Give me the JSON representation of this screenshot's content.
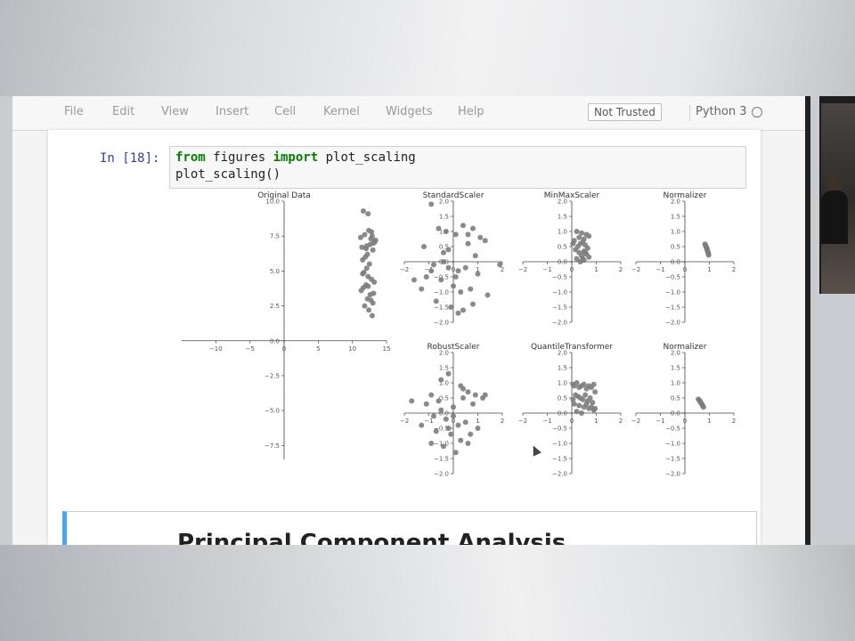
{
  "menu": {
    "items": [
      "File",
      "Edit",
      "View",
      "Insert",
      "Cell",
      "Kernel",
      "Widgets",
      "Help"
    ],
    "trust_status": "Not Trusted",
    "kernel_name": "Python 3"
  },
  "cell": {
    "prompt": "In [18]:",
    "code_line1_keyword1": "from",
    "code_line1_module": " figures ",
    "code_line1_keyword2": "import",
    "code_line1_name": " plot_scaling",
    "code_line2": "plot_scaling()"
  },
  "next_cell": {
    "heading": "Principal Component Analysis"
  },
  "chart_data": [
    {
      "type": "scatter",
      "title": "Original Data",
      "xlim": [
        -15,
        15
      ],
      "ylim": [
        -8.5,
        10
      ],
      "xticks": [
        -10,
        -5,
        0,
        5,
        10,
        15
      ],
      "yticks": [
        10.0,
        7.5,
        5.0,
        2.5,
        0.0,
        -2.5,
        -5.0,
        -7.5
      ],
      "x": [
        11.6,
        12.3,
        12.8,
        11.2,
        13.1,
        12.0,
        12.6,
        11.8,
        13.4,
        12.2,
        11.5,
        12.9,
        13.0,
        12.4,
        11.9,
        12.7,
        12.1,
        13.3,
        11.4,
        12.5,
        11.7,
        12.3,
        13.2,
        12.0,
        11.6,
        12.8,
        11.3,
        12.6,
        12.2,
        13.0,
        11.8,
        12.4,
        12.9,
        11.5,
        12.1,
        13.1,
        12.3,
        12.7
      ],
      "y": [
        9.3,
        9.1,
        7.8,
        7.4,
        7.0,
        6.6,
        6.9,
        7.6,
        7.2,
        6.2,
        5.8,
        7.5,
        6.5,
        7.9,
        6.0,
        7.3,
        6.8,
        7.1,
        6.7,
        5.5,
        4.9,
        4.6,
        4.2,
        4.0,
        3.8,
        4.4,
        3.6,
        3.3,
        3.0,
        2.7,
        2.5,
        2.2,
        1.8,
        4.8,
        5.2,
        3.4,
        3.9,
        2.9
      ],
      "marker_color": "#7d7d7d"
    },
    {
      "type": "scatter",
      "title": "StandardScaler",
      "xlim": [
        -2,
        2
      ],
      "ylim": [
        -2,
        2
      ],
      "xticks": [
        -2,
        -1,
        0,
        1,
        2
      ],
      "yticks": [
        2.0,
        1.5,
        1.0,
        0.5,
        0.0,
        -0.5,
        -1.0,
        -1.5,
        -2.0
      ],
      "x": [
        -0.9,
        -0.6,
        -0.3,
        0.1,
        0.4,
        0.8,
        1.1,
        1.3,
        -1.2,
        -0.2,
        0.6,
        0.9,
        -0.8,
        -0.4,
        0.2,
        0.5,
        1.0,
        -1.1,
        -0.5,
        0.0,
        0.3,
        0.7,
        1.4,
        -0.7,
        -0.1,
        0.4,
        -1.3,
        -0.9,
        0.8,
        0.2,
        -0.4,
        0.6,
        -0.2,
        1.9,
        -1.6,
        0.1
      ],
      "y": [
        1.9,
        1.1,
        1.0,
        0.9,
        1.2,
        1.1,
        0.8,
        0.7,
        0.5,
        0.4,
        0.6,
        0.2,
        -0.1,
        0.0,
        -0.3,
        -0.2,
        -0.4,
        -0.5,
        -0.6,
        -0.8,
        -1.0,
        -0.9,
        -1.1,
        -1.3,
        -1.5,
        -1.6,
        -0.9,
        -0.3,
        -1.4,
        -1.7,
        0.3,
        0.9,
        -0.2,
        -0.1,
        -0.6,
        -0.5
      ],
      "marker_color": "#7d7d7d"
    },
    {
      "type": "scatter",
      "title": "MinMaxScaler",
      "xlim": [
        -2,
        2
      ],
      "ylim": [
        -2,
        2
      ],
      "xticks": [
        -2,
        -1,
        0,
        1,
        2
      ],
      "yticks": [
        2.0,
        1.5,
        1.0,
        0.5,
        0.0,
        -0.5,
        -1.0,
        -1.5,
        -2.0
      ],
      "x": [
        0.2,
        0.4,
        0.6,
        0.3,
        0.5,
        0.7,
        0.1,
        0.35,
        0.55,
        0.45,
        0.25,
        0.65,
        0.15,
        0.5,
        0.3,
        0.6,
        0.4,
        0.7,
        0.2,
        0.5,
        0.35,
        0.05,
        0.55,
        0.45
      ],
      "y": [
        1.0,
        0.95,
        0.9,
        0.8,
        0.75,
        0.85,
        0.7,
        0.6,
        0.55,
        0.65,
        0.5,
        0.45,
        0.4,
        0.35,
        0.3,
        0.25,
        0.2,
        0.15,
        0.1,
        0.05,
        0.0,
        0.6,
        0.3,
        0.1
      ],
      "marker_color": "#7d7d7d"
    },
    {
      "type": "scatter",
      "title": "Normalizer",
      "xlim": [
        -2,
        2
      ],
      "ylim": [
        -2,
        2
      ],
      "xticks": [
        -2,
        -1,
        0,
        1,
        2
      ],
      "yticks": [
        2.0,
        1.5,
        1.0,
        0.5,
        0.0,
        -0.5,
        -1.0,
        -1.5,
        -2.0
      ],
      "x": [
        0.82,
        0.84,
        0.85,
        0.87,
        0.88,
        0.9,
        0.91,
        0.92,
        0.93,
        0.95,
        0.96,
        0.97
      ],
      "y": [
        0.58,
        0.55,
        0.52,
        0.49,
        0.46,
        0.43,
        0.4,
        0.37,
        0.34,
        0.3,
        0.26,
        0.22
      ],
      "marker_color": "#7d7d7d"
    },
    {
      "type": "scatter",
      "title": "RobustScaler",
      "xlim": [
        -2,
        2
      ],
      "ylim": [
        -2,
        2
      ],
      "xticks": [
        -2,
        -1,
        0,
        1,
        2
      ],
      "yticks": [
        2.0,
        1.5,
        1.0,
        0.5,
        0.0,
        -0.5,
        -1.0,
        -1.5,
        -2.0
      ],
      "x": [
        -1.7,
        -0.9,
        -0.5,
        -0.2,
        0.3,
        0.6,
        0.9,
        1.2,
        -1.1,
        -0.6,
        0.0,
        0.4,
        0.8,
        -0.8,
        -0.3,
        0.2,
        0.5,
        1.0,
        -1.3,
        -0.7,
        -0.1,
        0.3,
        0.6,
        -0.4,
        0.1,
        -0.9,
        0.7,
        -0.2,
        0.4,
        -0.5,
        1.3,
        0.0
      ],
      "y": [
        0.4,
        0.6,
        1.1,
        1.3,
        0.9,
        0.7,
        0.6,
        0.5,
        0.3,
        0.4,
        0.2,
        0.5,
        0.3,
        -0.1,
        -0.2,
        -0.4,
        -0.3,
        -0.5,
        -0.4,
        -0.6,
        -0.7,
        -0.9,
        -1.0,
        -1.1,
        -1.3,
        -1.0,
        -0.7,
        -0.5,
        0.8,
        0.1,
        0.6,
        -0.1
      ],
      "marker_color": "#7d7d7d"
    },
    {
      "type": "scatter",
      "title": "QuantileTransformer",
      "xlim": [
        -2,
        2
      ],
      "ylim": [
        -2,
        2
      ],
      "xticks": [
        -2,
        -1,
        0,
        1,
        2
      ],
      "yticks": [
        2.0,
        1.5,
        1.0,
        0.5,
        0.0,
        -0.5,
        -1.0,
        -1.5,
        -2.0
      ],
      "x": [
        0.05,
        0.1,
        0.2,
        0.3,
        0.4,
        0.5,
        0.6,
        0.7,
        0.8,
        0.9,
        0.95,
        0.15,
        0.25,
        0.35,
        0.45,
        0.55,
        0.65,
        0.75,
        0.85,
        0.1,
        0.3,
        0.5,
        0.7,
        0.9,
        0.2,
        0.4,
        0.6,
        0.8,
        0.05,
        0.95
      ],
      "y": [
        0.95,
        0.9,
        1.0,
        0.85,
        0.9,
        0.95,
        0.8,
        0.9,
        0.85,
        0.95,
        0.7,
        0.6,
        0.55,
        0.5,
        0.45,
        0.6,
        0.4,
        0.5,
        0.35,
        0.3,
        0.25,
        0.2,
        0.15,
        0.1,
        0.05,
        0.0,
        0.3,
        0.2,
        0.45,
        0.15
      ],
      "marker_color": "#7d7d7d"
    },
    {
      "type": "scatter",
      "title": "Normalizer",
      "xlim": [
        -2,
        2
      ],
      "ylim": [
        -2,
        2
      ],
      "xticks": [
        -2,
        -1,
        0,
        1,
        2
      ],
      "yticks": [
        2.0,
        1.5,
        1.0,
        0.5,
        0.0,
        -0.5,
        -1.0,
        -1.5,
        -2.0
      ],
      "x": [
        0.55,
        0.58,
        0.61,
        0.64,
        0.67,
        0.7,
        0.73,
        0.76
      ],
      "y": [
        0.46,
        0.43,
        0.4,
        0.36,
        0.32,
        0.28,
        0.24,
        0.2
      ],
      "marker_color": "#7d7d7d"
    }
  ]
}
